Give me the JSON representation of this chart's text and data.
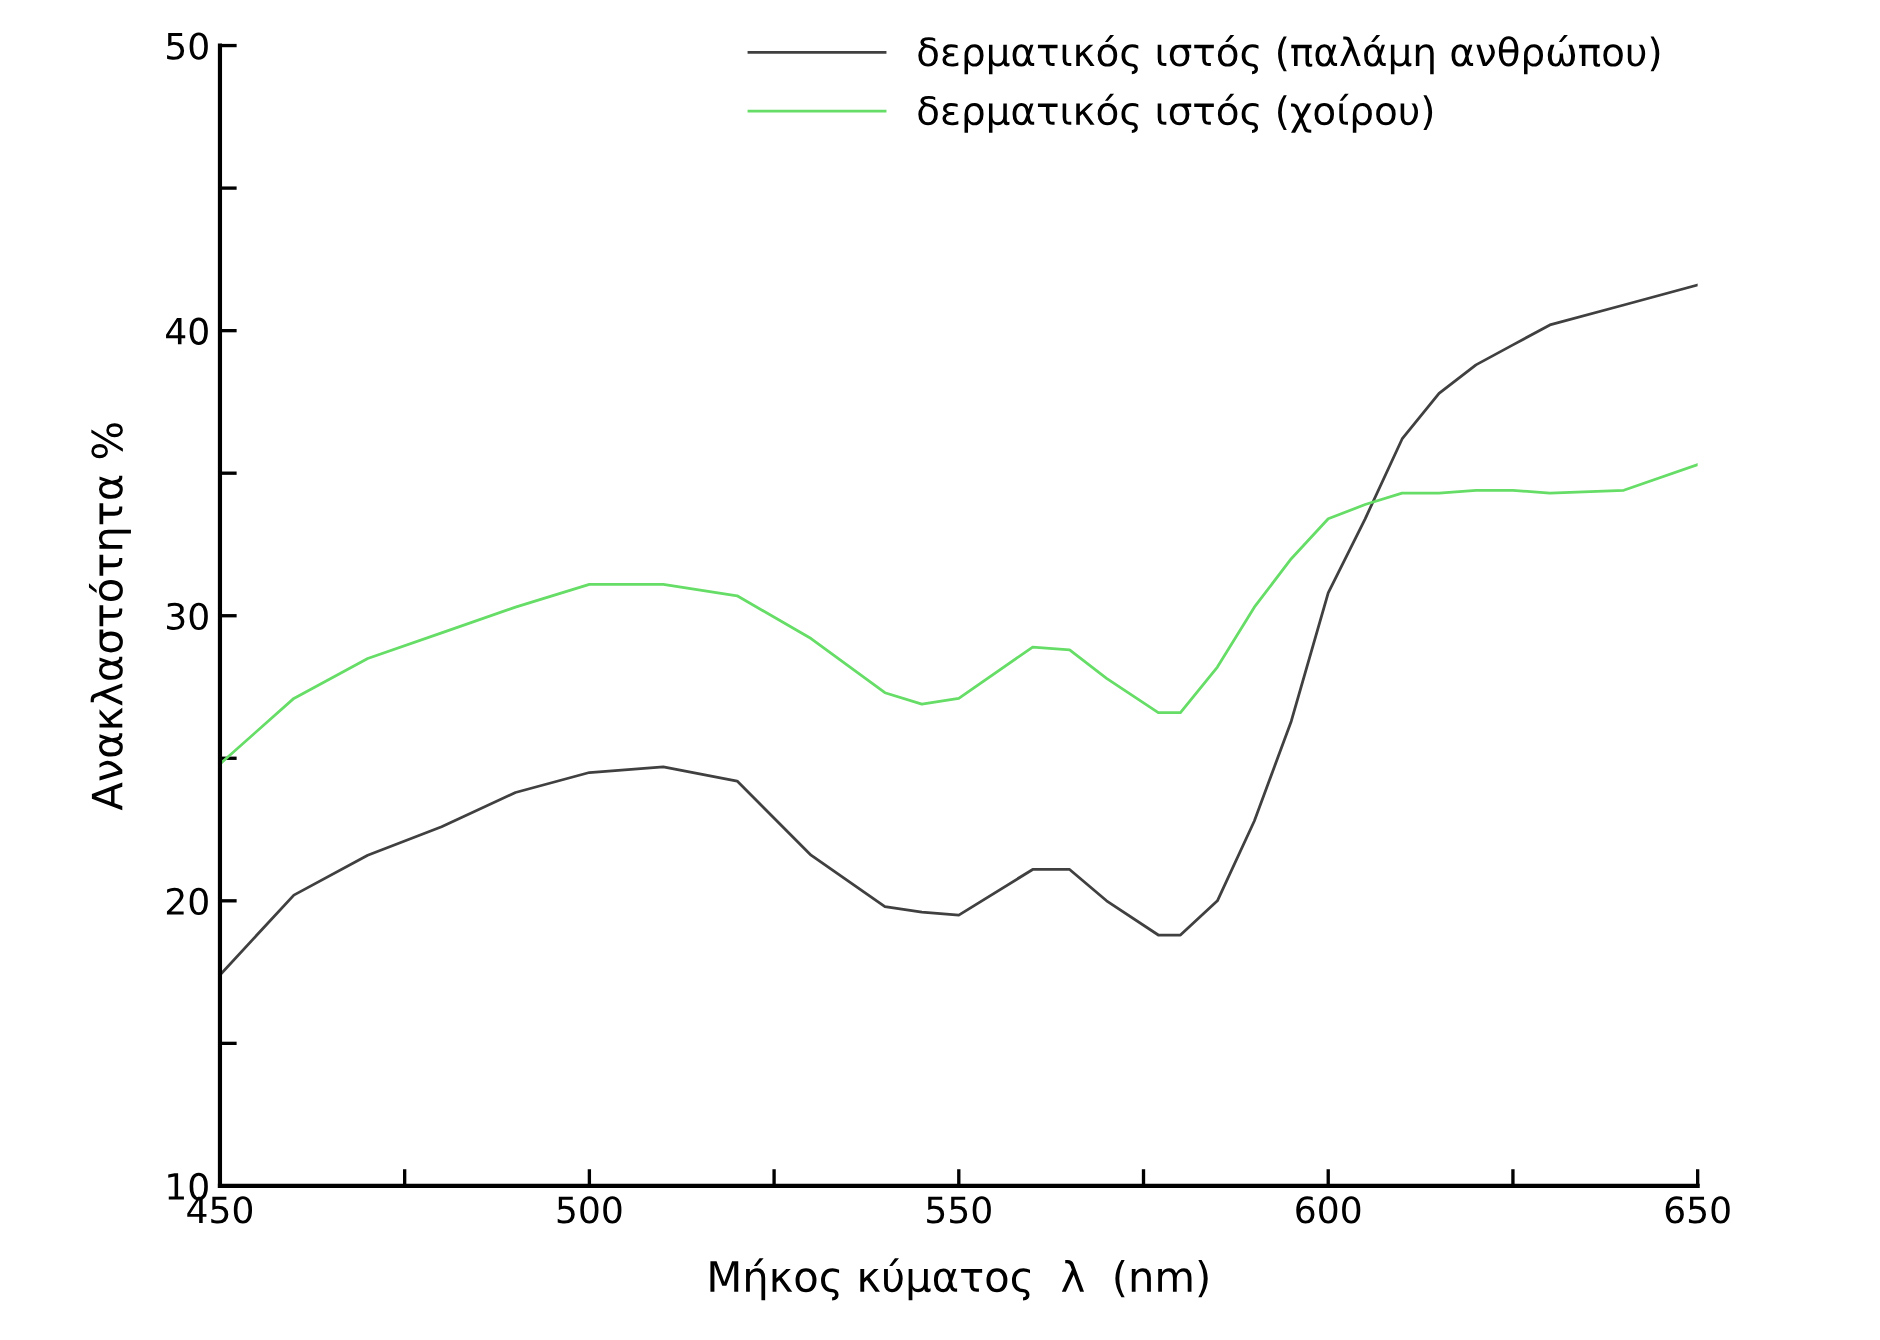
{
  "chart_data": {
    "type": "line",
    "xlabel": "Μήκος κύματος  λ  (nm)",
    "ylabel": "Ανακλαστότητα %",
    "xlim": [
      450,
      650
    ],
    "ylim": [
      10,
      50
    ],
    "xticks": [
      450,
      {
        "value": 475,
        "label": null
      },
      500,
      {
        "value": 525,
        "label": null
      },
      550,
      {
        "value": 575,
        "label": null
      },
      600,
      {
        "value": 625,
        "label": null
      },
      650
    ],
    "yticks": [
      10,
      {
        "value": 15,
        "label": null
      },
      20,
      {
        "value": 25,
        "label": null
      },
      30,
      {
        "value": 35,
        "label": null
      },
      40,
      {
        "value": 45,
        "label": null
      },
      50
    ],
    "grid": false,
    "legend": "top right",
    "marker": "none",
    "line_style": "solid",
    "x": [
      450,
      460,
      470,
      480,
      490,
      500,
      510,
      520,
      530,
      540,
      545,
      550,
      560,
      565,
      570,
      577,
      580,
      585,
      590,
      595,
      600,
      605,
      610,
      615,
      620,
      625,
      630,
      640,
      650
    ],
    "series": [
      {
        "name": "δερματικός ιστός (παλάμη ανθρώπου)",
        "color": "#404040",
        "values": [
          17.4,
          20.2,
          21.6,
          22.6,
          23.8,
          24.5,
          24.7,
          24.2,
          21.6,
          19.8,
          19.6,
          19.5,
          21.1,
          21.1,
          20.0,
          18.8,
          18.8,
          20.0,
          22.8,
          26.3,
          30.8,
          33.4,
          36.2,
          37.8,
          38.8,
          39.5,
          40.2,
          40.9,
          41.6
        ]
      },
      {
        "name": "δερματικός ιστός (χοίρου)",
        "color": "#66dd66",
        "values": [
          24.8,
          27.1,
          28.5,
          29.4,
          30.3,
          31.1,
          31.1,
          30.7,
          29.2,
          27.3,
          26.9,
          27.1,
          28.9,
          28.8,
          27.8,
          26.6,
          26.6,
          28.2,
          30.3,
          32.0,
          33.4,
          33.9,
          34.3,
          34.3,
          34.4,
          34.4,
          34.3,
          34.4,
          35.3
        ]
      }
    ]
  }
}
